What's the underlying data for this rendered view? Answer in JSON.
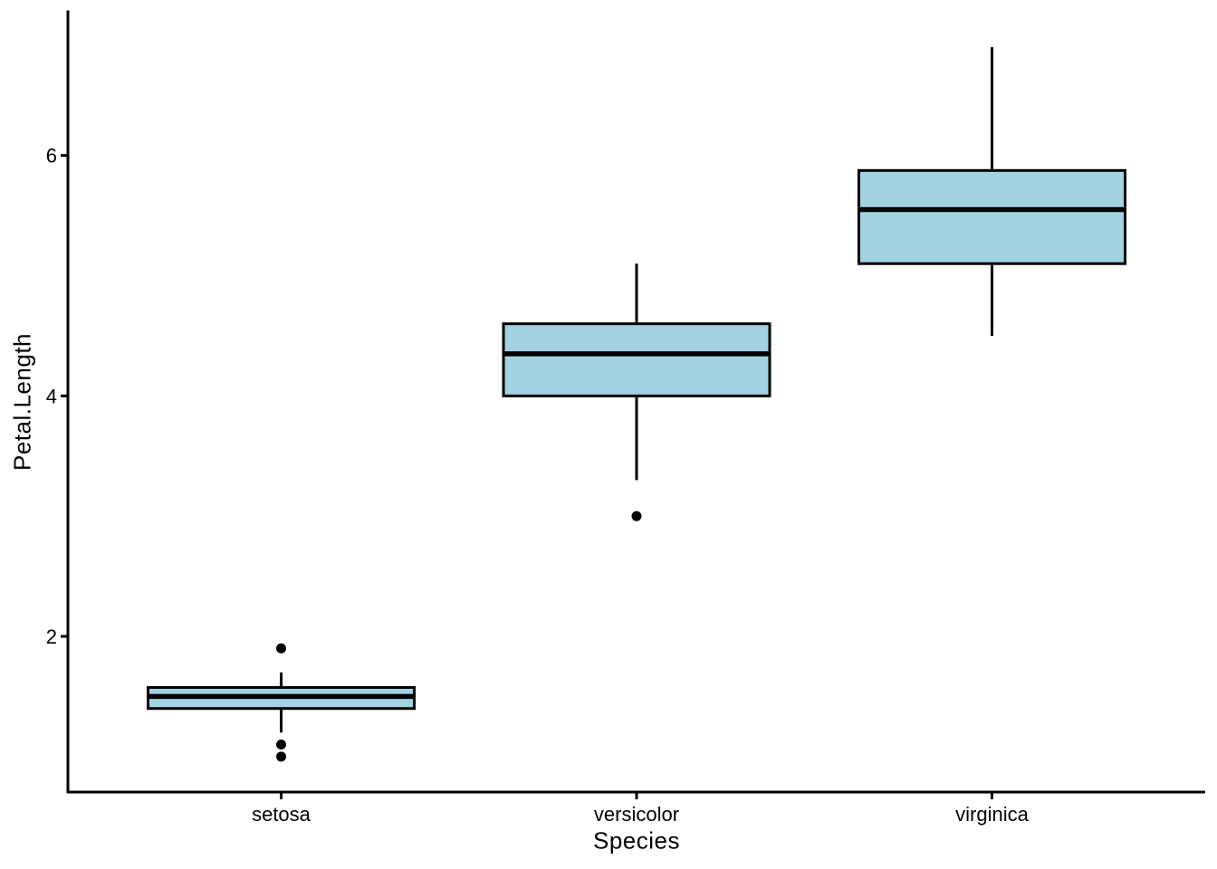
{
  "figure": {
    "background": "#FFFFFF"
  },
  "chart_data": {
    "type": "boxplot",
    "title": "",
    "xlabel": "Species",
    "ylabel": "Petal.Length",
    "categories": [
      "setosa",
      "versicolor",
      "virginica"
    ],
    "series": [
      {
        "name": "setosa",
        "lower_whisker": 1.2,
        "q1": 1.4,
        "median": 1.5,
        "q3": 1.575,
        "upper_whisker": 1.7,
        "outliers": [
          1.9,
          1.1,
          1.0
        ]
      },
      {
        "name": "versicolor",
        "lower_whisker": 3.3,
        "q1": 4.0,
        "median": 4.35,
        "q3": 4.6,
        "upper_whisker": 5.1,
        "outliers": [
          3.0
        ]
      },
      {
        "name": "virginica",
        "lower_whisker": 4.5,
        "q1": 5.1,
        "median": 5.55,
        "q3": 5.875,
        "upper_whisker": 6.9,
        "outliers": []
      }
    ],
    "y_ticks": [
      2,
      4,
      6
    ],
    "y_tick_labels": [
      "2",
      "4",
      "6"
    ],
    "ylim": [
      0.705,
      7.195
    ],
    "grid": "off",
    "legend": "none",
    "colors": {
      "box_fill": "#A3D2E2",
      "box_stroke": "#000000",
      "median": "#000000",
      "whisker": "#000000",
      "outlier": "#000000",
      "axis": "#000000",
      "text": "#000000"
    }
  }
}
